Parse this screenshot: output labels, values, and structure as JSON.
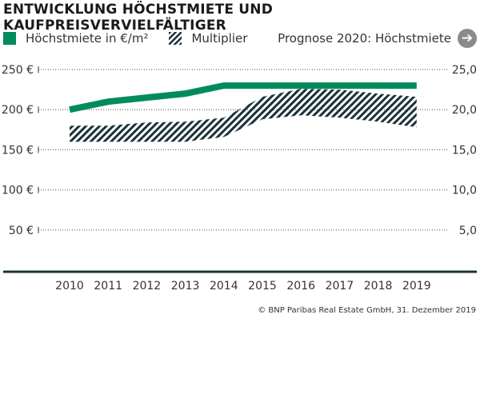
{
  "title": "ENTWICKLUNG HÖCHSTMIETE UND KAUFPREISVERVIELFÄLTIGER",
  "legend": {
    "rent": "Höchstmiete in €/m²",
    "multiplier": "Multiplier",
    "forecast": "Prognose 2020: Höchstmiete",
    "forecast_icon": "arrow-right-circle-icon"
  },
  "credit": "© BNP Paribas Real Estate GmbH, 31. Dezember 2019",
  "colors": {
    "rent": "#008c5a",
    "hatch": "#1a3238",
    "axis": "#1a3238"
  },
  "chart_data": {
    "type": "line",
    "categories": [
      "2010",
      "2011",
      "2012",
      "2013",
      "2014",
      "2015",
      "2016",
      "2017",
      "2018",
      "2019"
    ],
    "y_left": {
      "ticks": [
        "50 €",
        "100 €",
        "150 €",
        "200 €",
        "250 €"
      ],
      "range": [
        0,
        250
      ]
    },
    "y_right": {
      "ticks": [
        "5,0",
        "10,0",
        "15,0",
        "20,0",
        "25,0"
      ],
      "range": [
        0,
        25
      ]
    },
    "grid": true,
    "series": [
      {
        "name": "Höchstmiete in €/m²",
        "axis": "left",
        "values": [
          200,
          210,
          215,
          220,
          230,
          230,
          230,
          230,
          230,
          230
        ]
      },
      {
        "name": "Multiplier",
        "axis": "right",
        "type": "band",
        "upper": [
          18.0,
          18.0,
          18.4,
          18.5,
          19.0,
          21.6,
          22.6,
          22.5,
          22.0,
          21.6
        ],
        "lower": [
          16.0,
          16.0,
          16.0,
          16.0,
          16.6,
          18.8,
          19.3,
          19.0,
          18.5,
          17.8
        ]
      }
    ]
  }
}
